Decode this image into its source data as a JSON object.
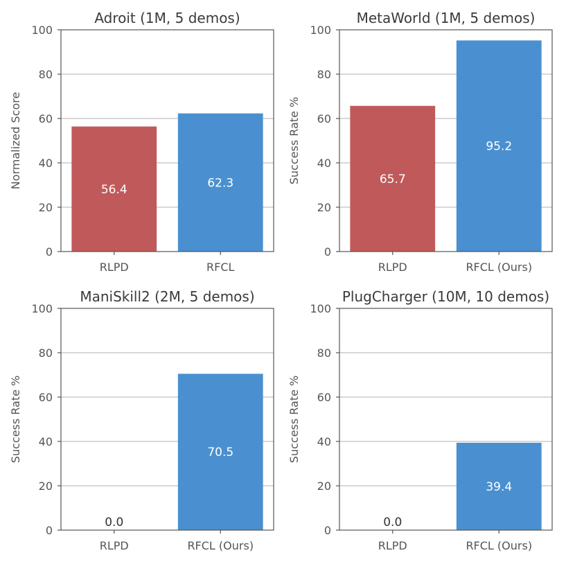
{
  "chart_data": [
    {
      "type": "bar",
      "title": "Adroit (1M, 5 demos)",
      "ylabel": "Normalized Score",
      "xlabel": "",
      "ylim": [
        0,
        100
      ],
      "yticks": [
        0,
        20,
        40,
        60,
        80,
        100
      ],
      "grid": true,
      "categories": [
        "RLPD",
        "RFCL"
      ],
      "values": [
        56.4,
        62.3
      ],
      "value_labels": [
        "56.4",
        "62.3"
      ],
      "colors": [
        "#c05a5a",
        "#4a90d0"
      ]
    },
    {
      "type": "bar",
      "title": "MetaWorld (1M, 5 demos)",
      "ylabel": "Success Rate %",
      "xlabel": "",
      "ylim": [
        0,
        100
      ],
      "yticks": [
        0,
        20,
        40,
        60,
        80,
        100
      ],
      "grid": true,
      "categories": [
        "RLPD",
        "RFCL (Ours)"
      ],
      "values": [
        65.7,
        95.2
      ],
      "value_labels": [
        "65.7",
        "95.2"
      ],
      "colors": [
        "#c05a5a",
        "#4a90d0"
      ]
    },
    {
      "type": "bar",
      "title": "ManiSkill2 (2M, 5 demos)",
      "ylabel": "Success Rate %",
      "xlabel": "",
      "ylim": [
        0,
        100
      ],
      "yticks": [
        0,
        20,
        40,
        60,
        80,
        100
      ],
      "grid": true,
      "categories": [
        "RLPD",
        "RFCL (Ours)"
      ],
      "values": [
        0.0,
        70.5
      ],
      "value_labels": [
        "0.0",
        "70.5"
      ],
      "colors": [
        "#c05a5a",
        "#4a90d0"
      ]
    },
    {
      "type": "bar",
      "title": "PlugCharger (10M, 10 demos)",
      "ylabel": "Success Rate %",
      "xlabel": "",
      "ylim": [
        0,
        100
      ],
      "yticks": [
        0,
        20,
        40,
        60,
        80,
        100
      ],
      "grid": true,
      "categories": [
        "RLPD",
        "RFCL (Ours)"
      ],
      "values": [
        0.0,
        39.4
      ],
      "value_labels": [
        "0.0",
        "39.4"
      ],
      "colors": [
        "#c05a5a",
        "#4a90d0"
      ]
    }
  ]
}
